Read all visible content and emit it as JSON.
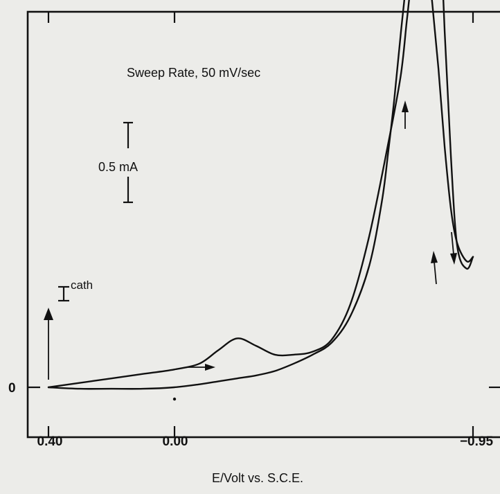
{
  "chart_data": {
    "type": "line",
    "title": "",
    "annotation": "Sweep Rate, 50 mV/sec",
    "xlabel": "E/Volt vs. S.C.E.",
    "ylabel": "",
    "x_ticks": [
      "0.40",
      "0.00",
      "−0.95"
    ],
    "y_ticks": [
      "0"
    ],
    "xlim": [
      0.4,
      -0.95
    ],
    "scale_bar": {
      "label": "0.5 mA",
      "value_mA": 0.5
    },
    "current_label": {
      "symbol": "I",
      "superscript": "cath"
    },
    "grid": false,
    "legend": "none",
    "series": [
      {
        "values_x": [
          0.4,
          0.3,
          0.2,
          0.1,
          0.0,
          -0.08,
          -0.14,
          -0.2,
          -0.26,
          -0.32,
          -0.38,
          -0.44,
          -0.5,
          -0.56,
          -0.62,
          -0.68,
          -0.72,
          -0.74,
          -0.76,
          -0.78,
          -0.8,
          -0.82,
          -0.84,
          -0.86,
          -0.88,
          -0.9,
          -0.93,
          -0.95
        ],
        "values_y": [
          0.0,
          0.03,
          0.06,
          0.09,
          0.12,
          0.16,
          0.25,
          0.33,
          0.28,
          0.22,
          0.22,
          0.24,
          0.32,
          0.56,
          1.02,
          1.64,
          2.1,
          2.48,
          2.85,
          3.05,
          2.98,
          2.6,
          2.15,
          1.62,
          1.2,
          0.97,
          0.85,
          0.88
        ]
      },
      {
        "values_x": [
          -0.95,
          -0.93,
          -0.9,
          -0.88,
          -0.86,
          -0.84,
          -0.82,
          -0.8,
          -0.78,
          -0.76,
          -0.74,
          -0.72,
          -0.7,
          -0.68,
          -0.66,
          -0.62,
          -0.56,
          -0.5,
          -0.44,
          -0.38,
          -0.32,
          -0.26,
          -0.2,
          -0.14,
          -0.08,
          0.0,
          0.1,
          0.2,
          0.3,
          0.4
        ],
        "values_y": [
          0.88,
          0.8,
          0.95,
          1.55,
          2.4,
          3.4,
          4.2,
          4.65,
          4.25,
          3.4,
          2.8,
          2.38,
          1.95,
          1.58,
          1.25,
          0.82,
          0.48,
          0.3,
          0.22,
          0.16,
          0.11,
          0.08,
          0.06,
          0.04,
          0.02,
          0.0,
          -0.01,
          -0.01,
          -0.01,
          0.0
        ]
      }
    ]
  }
}
